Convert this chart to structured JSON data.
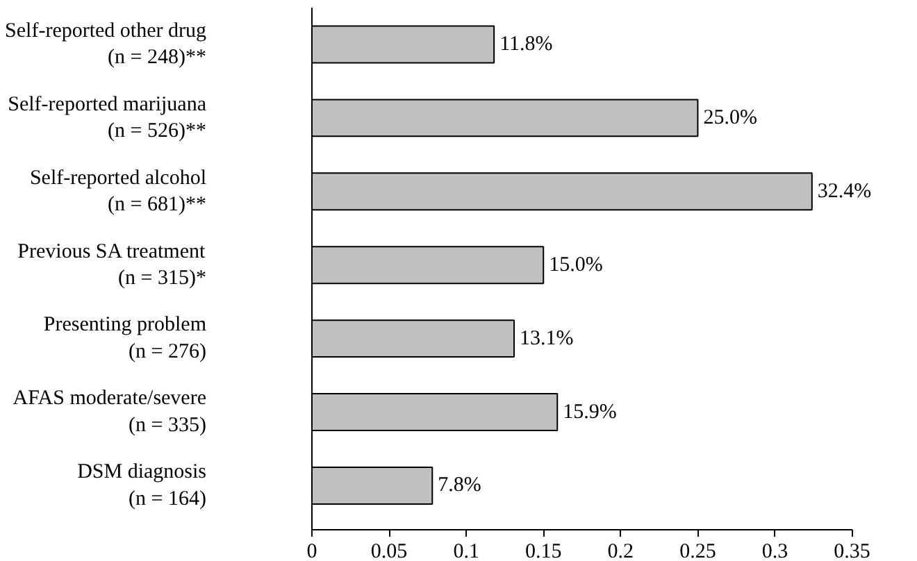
{
  "chart_data": {
    "type": "bar",
    "orientation": "horizontal",
    "categories": [
      "Self-reported other drug\n(n = 248)**",
      "Self-reported marijuana\n(n = 526)**",
      "Self-reported alcohol\n(n = 681)**",
      "Previous SA treatment\n(n = 315)*",
      "Presenting problem\n(n = 276)",
      "AFAS moderate/severe\n(n = 335)",
      "DSM diagnosis\n(n = 164)"
    ],
    "values": [
      0.118,
      0.25,
      0.324,
      0.15,
      0.131,
      0.159,
      0.078
    ],
    "value_labels": [
      "11.8%",
      "25.0%",
      "32.4%",
      "15.0%",
      "13.1%",
      "15.9%",
      "7.8%"
    ],
    "color": "#c0c0c0",
    "xlim": [
      0,
      0.35
    ],
    "xticks": [
      0,
      0.05,
      0.1,
      0.15,
      0.2,
      0.25,
      0.3,
      0.35
    ],
    "grid": false
  }
}
